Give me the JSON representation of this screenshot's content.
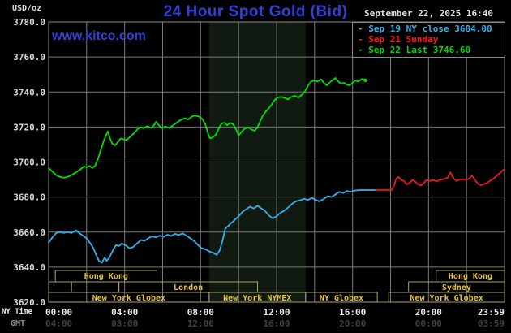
{
  "header": {
    "unit_label": "USD/oz",
    "title": "24 Hour Spot Gold (Bid)",
    "datetime": "September 22, 2025 16:40",
    "watermark": "www.kitco.com",
    "title_color": "#3240d8"
  },
  "legend": {
    "items": [
      {
        "label": "Sep 19 NY close 3684.00",
        "color": "#35b0ee"
      },
      {
        "label": "Sep 21 Sunday",
        "color": "#ff1a1a"
      },
      {
        "label": "Sep 22 Last 3746.60",
        "color": "#00dd00"
      }
    ]
  },
  "axes": {
    "x_ny_label": "NY Time",
    "x_gmt_label": "GMT",
    "y_ticks": [
      "3780.0",
      "3760.0",
      "3740.0",
      "3720.0",
      "3700.0",
      "3680.0",
      "3660.0",
      "3640.0",
      "3620.0"
    ],
    "x_ticks": [
      {
        "t": 0,
        "ny": "00:00",
        "gmt": "04:00",
        "align": "start"
      },
      {
        "t": 4,
        "ny": "04:00",
        "gmt": "08:00",
        "align": "middle"
      },
      {
        "t": 8,
        "ny": "08:00",
        "gmt": "12:00",
        "align": "middle"
      },
      {
        "t": 12,
        "ny": "12:00",
        "gmt": "16:00",
        "align": "middle"
      },
      {
        "t": 16,
        "ny": "16:00",
        "gmt": "20:00",
        "align": "middle"
      },
      {
        "t": 20,
        "ny": "20:00",
        "gmt": "00:00",
        "align": "middle"
      },
      {
        "t": 24,
        "ny": "23:59",
        "gmt": "03:59",
        "align": "end"
      }
    ]
  },
  "sessions": {
    "rows": [
      {
        "boxes": [
          {
            "t0": 0.35,
            "t1": 5.7,
            "label": "Hong Kong"
          },
          {
            "t0": 20.4,
            "t1": 24,
            "label": "Hong Kong"
          }
        ]
      },
      {
        "boxes": [
          {
            "t0": 0,
            "t1": 1.2,
            "label": ""
          },
          {
            "t0": 1.2,
            "t1": 3.7,
            "label": ""
          },
          {
            "t0": 3.7,
            "t1": 11,
            "label": "London"
          },
          {
            "t0": 18.95,
            "t1": 24,
            "label": "Sydney"
          }
        ]
      },
      {
        "boxes": [
          {
            "t0": 0,
            "t1": 8.45,
            "label": "New York Globex"
          },
          {
            "t0": 8.45,
            "t1": 13.53,
            "label": "New York NYMEX"
          },
          {
            "t0": 13.53,
            "t1": 17.3,
            "label": "NY Globex"
          },
          {
            "t0": 17.9,
            "t1": 24,
            "label": "New York Globex"
          }
        ]
      }
    ]
  },
  "chart_data": {
    "type": "line",
    "title": "24 Hour Spot Gold (Bid)",
    "ylabel": "USD/oz",
    "ylim": [
      3620,
      3780
    ],
    "y_tick_step": 20,
    "x_range_hours": [
      0,
      24
    ],
    "grid": true,
    "legend_position": "top-right",
    "prev_close": 3684.0,
    "last": 3746.6,
    "nymex_band_hours": [
      8.45,
      13.53
    ],
    "colors": {
      "band": "#101a10",
      "grid": "#7a7a7a",
      "frame": "#8c8c8c",
      "session_border": "#a9a163",
      "session_text": "#e6c33c"
    },
    "series": [
      {
        "name": "Sep 19 NY close 3684.00",
        "color": "#35b0ee",
        "points": [
          [
            0,
            3654
          ],
          [
            0.2,
            3657
          ],
          [
            0.4,
            3659.5
          ],
          [
            0.6,
            3660
          ],
          [
            0.8,
            3659.5
          ],
          [
            1.0,
            3660
          ],
          [
            1.2,
            3659.5
          ],
          [
            1.45,
            3661
          ],
          [
            1.6,
            3659.5
          ],
          [
            1.8,
            3658
          ],
          [
            2.0,
            3656.5
          ],
          [
            2.2,
            3653.5
          ],
          [
            2.35,
            3651
          ],
          [
            2.5,
            3647
          ],
          [
            2.65,
            3643.5
          ],
          [
            2.8,
            3642.5
          ],
          [
            2.95,
            3645.5
          ],
          [
            3.05,
            3643.5
          ],
          [
            3.2,
            3645.5
          ],
          [
            3.4,
            3650
          ],
          [
            3.55,
            3652.5
          ],
          [
            3.7,
            3652
          ],
          [
            3.85,
            3653.5
          ],
          [
            4.05,
            3652.5
          ],
          [
            4.25,
            3650.8
          ],
          [
            4.45,
            3651.5
          ],
          [
            4.65,
            3653.5
          ],
          [
            4.85,
            3655.5
          ],
          [
            5.05,
            3655
          ],
          [
            5.25,
            3656.5
          ],
          [
            5.45,
            3657.5
          ],
          [
            5.65,
            3657
          ],
          [
            5.85,
            3658
          ],
          [
            6.05,
            3657.3
          ],
          [
            6.25,
            3658.5
          ],
          [
            6.45,
            3657.8
          ],
          [
            6.65,
            3659
          ],
          [
            6.85,
            3658.3
          ],
          [
            7.05,
            3659.3
          ],
          [
            7.25,
            3658
          ],
          [
            7.45,
            3656.5
          ],
          [
            7.65,
            3655
          ],
          [
            7.85,
            3652.8
          ],
          [
            8.05,
            3650.8
          ],
          [
            8.25,
            3650.2
          ],
          [
            8.45,
            3649
          ],
          [
            8.65,
            3648.2
          ],
          [
            8.85,
            3647
          ],
          [
            9.0,
            3649.5
          ],
          [
            9.15,
            3655
          ],
          [
            9.3,
            3662
          ],
          [
            9.45,
            3663.5
          ],
          [
            9.6,
            3665
          ],
          [
            9.8,
            3667
          ],
          [
            10.0,
            3669
          ],
          [
            10.2,
            3671.5
          ],
          [
            10.4,
            3673
          ],
          [
            10.6,
            3674.5
          ],
          [
            10.8,
            3673.5
          ],
          [
            11.0,
            3675
          ],
          [
            11.2,
            3673.5
          ],
          [
            11.4,
            3672
          ],
          [
            11.6,
            3669.5
          ],
          [
            11.8,
            3667.8
          ],
          [
            12.0,
            3669
          ],
          [
            12.2,
            3671
          ],
          [
            12.4,
            3672.2
          ],
          [
            12.6,
            3674
          ],
          [
            12.8,
            3676
          ],
          [
            13.0,
            3677.5
          ],
          [
            13.2,
            3678
          ],
          [
            13.45,
            3679
          ],
          [
            13.65,
            3678.3
          ],
          [
            13.85,
            3679.5
          ],
          [
            14.05,
            3678.5
          ],
          [
            14.25,
            3677.5
          ],
          [
            14.5,
            3679
          ],
          [
            14.7,
            3680.5
          ],
          [
            14.9,
            3680
          ],
          [
            15.1,
            3681.5
          ],
          [
            15.3,
            3683
          ],
          [
            15.5,
            3682.3
          ],
          [
            15.7,
            3683.5
          ],
          [
            15.9,
            3683
          ],
          [
            16.1,
            3683.7
          ],
          [
            16.4,
            3684
          ],
          [
            16.8,
            3684
          ],
          [
            17.25,
            3684
          ]
        ]
      },
      {
        "name": "Sep 21 Sunday",
        "color": "#f21420",
        "points": [
          [
            17.25,
            3684
          ],
          [
            18.05,
            3684
          ],
          [
            18.2,
            3687
          ],
          [
            18.3,
            3690.5
          ],
          [
            18.42,
            3691.5
          ],
          [
            18.55,
            3689.8
          ],
          [
            18.7,
            3689.2
          ],
          [
            18.85,
            3687.2
          ],
          [
            19.0,
            3688
          ],
          [
            19.15,
            3689.8
          ],
          [
            19.3,
            3688.8
          ],
          [
            19.45,
            3687.2
          ],
          [
            19.6,
            3686.6
          ],
          [
            19.75,
            3688
          ],
          [
            19.9,
            3689.8
          ],
          [
            20.05,
            3689.2
          ],
          [
            20.25,
            3689.6
          ],
          [
            20.45,
            3689
          ],
          [
            20.65,
            3690
          ],
          [
            20.85,
            3690.4
          ],
          [
            21.0,
            3691
          ],
          [
            21.15,
            3694
          ],
          [
            21.3,
            3691
          ],
          [
            21.45,
            3689.2
          ],
          [
            21.6,
            3689.8
          ],
          [
            21.8,
            3690.2
          ],
          [
            22.0,
            3690
          ],
          [
            22.15,
            3690.6
          ],
          [
            22.3,
            3692.2
          ],
          [
            22.45,
            3689.6
          ],
          [
            22.6,
            3687.6
          ],
          [
            22.75,
            3686.8
          ],
          [
            22.9,
            3687.2
          ],
          [
            23.1,
            3688.2
          ],
          [
            23.3,
            3689.6
          ],
          [
            23.5,
            3691.2
          ],
          [
            23.7,
            3693.2
          ],
          [
            23.85,
            3694.6
          ],
          [
            23.97,
            3695.8
          ]
        ]
      },
      {
        "name": "Sep 22 Last 3746.60",
        "color": "#00e000",
        "points": [
          [
            0,
            3696.5
          ],
          [
            0.2,
            3694.5
          ],
          [
            0.4,
            3692.5
          ],
          [
            0.6,
            3691.5
          ],
          [
            0.8,
            3691
          ],
          [
            1.0,
            3691.5
          ],
          [
            1.2,
            3692.5
          ],
          [
            1.5,
            3694.5
          ],
          [
            1.7,
            3696
          ],
          [
            1.85,
            3697.5
          ],
          [
            2.0,
            3697
          ],
          [
            2.15,
            3697.8
          ],
          [
            2.3,
            3696.6
          ],
          [
            2.45,
            3698
          ],
          [
            2.6,
            3702
          ],
          [
            2.75,
            3707
          ],
          [
            2.9,
            3712
          ],
          [
            3.05,
            3716
          ],
          [
            3.12,
            3717.5
          ],
          [
            3.2,
            3714.5
          ],
          [
            3.35,
            3710.5
          ],
          [
            3.5,
            3709.5
          ],
          [
            3.65,
            3711.5
          ],
          [
            3.8,
            3713.5
          ],
          [
            3.95,
            3713
          ],
          [
            4.1,
            3712.5
          ],
          [
            4.3,
            3714.5
          ],
          [
            4.5,
            3716.5
          ],
          [
            4.7,
            3719
          ],
          [
            4.85,
            3720
          ],
          [
            5.0,
            3719.3
          ],
          [
            5.2,
            3720.5
          ],
          [
            5.4,
            3719.5
          ],
          [
            5.55,
            3721
          ],
          [
            5.65,
            3723
          ],
          [
            5.8,
            3721
          ],
          [
            5.95,
            3719.5
          ],
          [
            6.15,
            3720.3
          ],
          [
            6.35,
            3719.5
          ],
          [
            6.55,
            3721
          ],
          [
            6.75,
            3722.5
          ],
          [
            6.95,
            3724
          ],
          [
            7.15,
            3725
          ],
          [
            7.35,
            3724.3
          ],
          [
            7.55,
            3726
          ],
          [
            7.7,
            3726.5
          ],
          [
            7.9,
            3726
          ],
          [
            8.1,
            3724.5
          ],
          [
            8.25,
            3721.5
          ],
          [
            8.4,
            3716
          ],
          [
            8.5,
            3713.5
          ],
          [
            8.65,
            3714.2
          ],
          [
            8.8,
            3715.5
          ],
          [
            8.95,
            3719
          ],
          [
            9.1,
            3722
          ],
          [
            9.25,
            3722.5
          ],
          [
            9.4,
            3721
          ],
          [
            9.55,
            3722.3
          ],
          [
            9.7,
            3721.8
          ],
          [
            9.85,
            3719
          ],
          [
            10.0,
            3715.2
          ],
          [
            10.15,
            3717
          ],
          [
            10.3,
            3719
          ],
          [
            10.5,
            3719.8
          ],
          [
            10.7,
            3718.5
          ],
          [
            10.85,
            3717.8
          ],
          [
            11.0,
            3720
          ],
          [
            11.15,
            3723.5
          ],
          [
            11.3,
            3727
          ],
          [
            11.45,
            3729
          ],
          [
            11.6,
            3730.8
          ],
          [
            11.75,
            3733
          ],
          [
            11.9,
            3735.5
          ],
          [
            12.05,
            3736.8
          ],
          [
            12.25,
            3737.2
          ],
          [
            12.45,
            3736.5
          ],
          [
            12.6,
            3735.8
          ],
          [
            12.75,
            3737
          ],
          [
            12.95,
            3737.8
          ],
          [
            13.15,
            3736.8
          ],
          [
            13.35,
            3738.5
          ],
          [
            13.5,
            3740.5
          ],
          [
            13.65,
            3743.5
          ],
          [
            13.8,
            3745.8
          ],
          [
            13.95,
            3746.5
          ],
          [
            14.15,
            3746
          ],
          [
            14.35,
            3747.2
          ],
          [
            14.5,
            3745
          ],
          [
            14.65,
            3743.8
          ],
          [
            14.8,
            3745.5
          ],
          [
            15.0,
            3747.2
          ],
          [
            15.1,
            3748
          ],
          [
            15.25,
            3746
          ],
          [
            15.4,
            3744.8
          ],
          [
            15.55,
            3745.2
          ],
          [
            15.7,
            3744.2
          ],
          [
            15.85,
            3743.8
          ],
          [
            16.0,
            3745.2
          ],
          [
            16.15,
            3746.5
          ],
          [
            16.3,
            3746
          ],
          [
            16.5,
            3747.5
          ],
          [
            16.67,
            3746.6
          ]
        ]
      }
    ]
  }
}
